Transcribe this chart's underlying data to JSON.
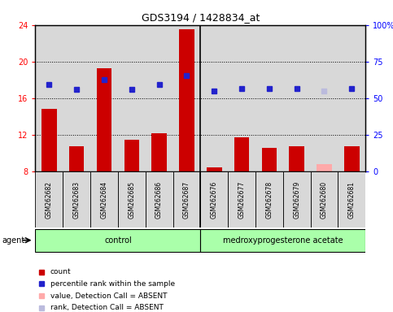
{
  "title": "GDS3194 / 1428834_at",
  "samples": [
    "GSM262682",
    "GSM262683",
    "GSM262684",
    "GSM262685",
    "GSM262686",
    "GSM262687",
    "GSM262676",
    "GSM262677",
    "GSM262678",
    "GSM262679",
    "GSM262680",
    "GSM262681"
  ],
  "bar_values": [
    14.8,
    10.8,
    19.3,
    11.5,
    12.2,
    23.5,
    8.5,
    11.7,
    10.6,
    10.8,
    8.8,
    10.8
  ],
  "bar_colors": [
    "#cc0000",
    "#cc0000",
    "#cc0000",
    "#cc0000",
    "#cc0000",
    "#cc0000",
    "#cc0000",
    "#cc0000",
    "#cc0000",
    "#cc0000",
    "#ffaaaa",
    "#cc0000"
  ],
  "dot_values": [
    17.5,
    17.0,
    18.0,
    17.0,
    17.5,
    18.5,
    16.8,
    17.1,
    17.1,
    17.1,
    16.8,
    17.1
  ],
  "dot_colors": [
    "#2222cc",
    "#2222cc",
    "#2222cc",
    "#2222cc",
    "#2222cc",
    "#2222cc",
    "#2222cc",
    "#2222cc",
    "#2222cc",
    "#2222cc",
    "#bbbbdd",
    "#2222cc"
  ],
  "ylim_left": [
    8,
    24
  ],
  "ylim_right": [
    0,
    100
  ],
  "yticks_left": [
    8,
    12,
    16,
    20,
    24
  ],
  "yticks_right": [
    0,
    25,
    50,
    75,
    100
  ],
  "ytick_labels_right": [
    "0",
    "25",
    "50",
    "75",
    "100%"
  ],
  "groups": [
    {
      "label": "control",
      "start": 0,
      "end": 5
    },
    {
      "label": "medroxyprogesterone acetate",
      "start": 6,
      "end": 11
    }
  ],
  "group_color": "#aaffaa",
  "sample_box_color": "#d8d8d8",
  "agent_label": "agent",
  "legend_items": [
    {
      "label": "count",
      "color": "#cc0000"
    },
    {
      "label": "percentile rank within the sample",
      "color": "#2222cc"
    },
    {
      "label": "value, Detection Call = ABSENT",
      "color": "#ffaaaa"
    },
    {
      "label": "rank, Detection Call = ABSENT",
      "color": "#bbbbdd"
    }
  ],
  "bar_width": 0.55,
  "plot_bg_color": "#d8d8d8",
  "hgrid_lines": [
    12,
    16,
    20
  ],
  "absent_sample_index": 10
}
